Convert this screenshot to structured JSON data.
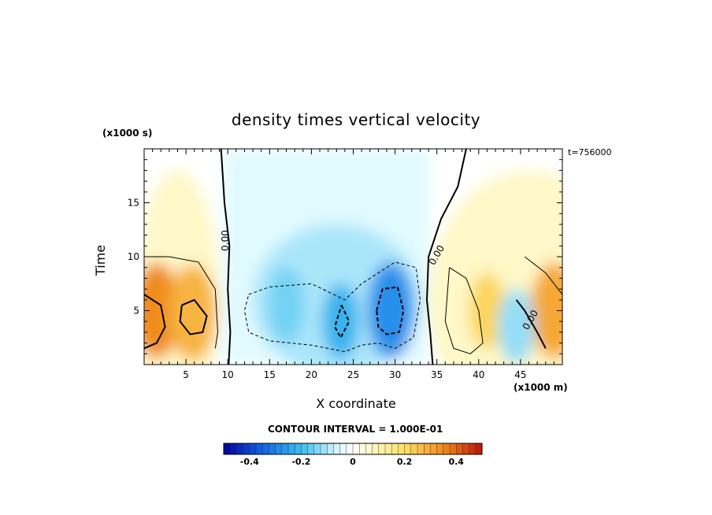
{
  "chart_data": {
    "type": "heatmap",
    "title": "density times vertical velocity",
    "xlabel": "X coordinate",
    "ylabel": "Time",
    "x_unit": "(x1000 m)",
    "y_unit": "(x1000 s)",
    "timestamp": "t=756000",
    "contour_interval_label": "CONTOUR INTERVAL = 1.000E-01",
    "xlim": [
      0,
      50
    ],
    "ylim": [
      0,
      20
    ],
    "x_ticks": [
      5,
      10,
      15,
      20,
      25,
      30,
      35,
      40,
      45
    ],
    "y_ticks": [
      5,
      10,
      15
    ],
    "contour_label": "0.00",
    "colorbar": {
      "min": -0.5,
      "max": 0.5,
      "ticks": [
        -0.4,
        -0.2,
        0,
        0.2,
        0.4
      ],
      "tick_labels": [
        "-0.4",
        "-0.2",
        "0",
        "0.2",
        "0.4"
      ]
    },
    "features": [
      {
        "kind": "max",
        "x": 1.5,
        "y": 5.0,
        "value": 0.35
      },
      {
        "kind": "max",
        "x": 5.8,
        "y": 4.8,
        "value": 0.28
      },
      {
        "kind": "max",
        "x": 41.0,
        "y": 5.0,
        "value": 0.22
      },
      {
        "kind": "max",
        "x": 49.0,
        "y": 5.0,
        "value": 0.3
      },
      {
        "kind": "min",
        "x": 17.0,
        "y": 5.5,
        "value": -0.15
      },
      {
        "kind": "min",
        "x": 23.5,
        "y": 4.0,
        "value": -0.22
      },
      {
        "kind": "min",
        "x": 29.5,
        "y": 5.0,
        "value": -0.28
      },
      {
        "kind": "min",
        "x": 44.5,
        "y": 3.5,
        "value": -0.12
      }
    ]
  }
}
